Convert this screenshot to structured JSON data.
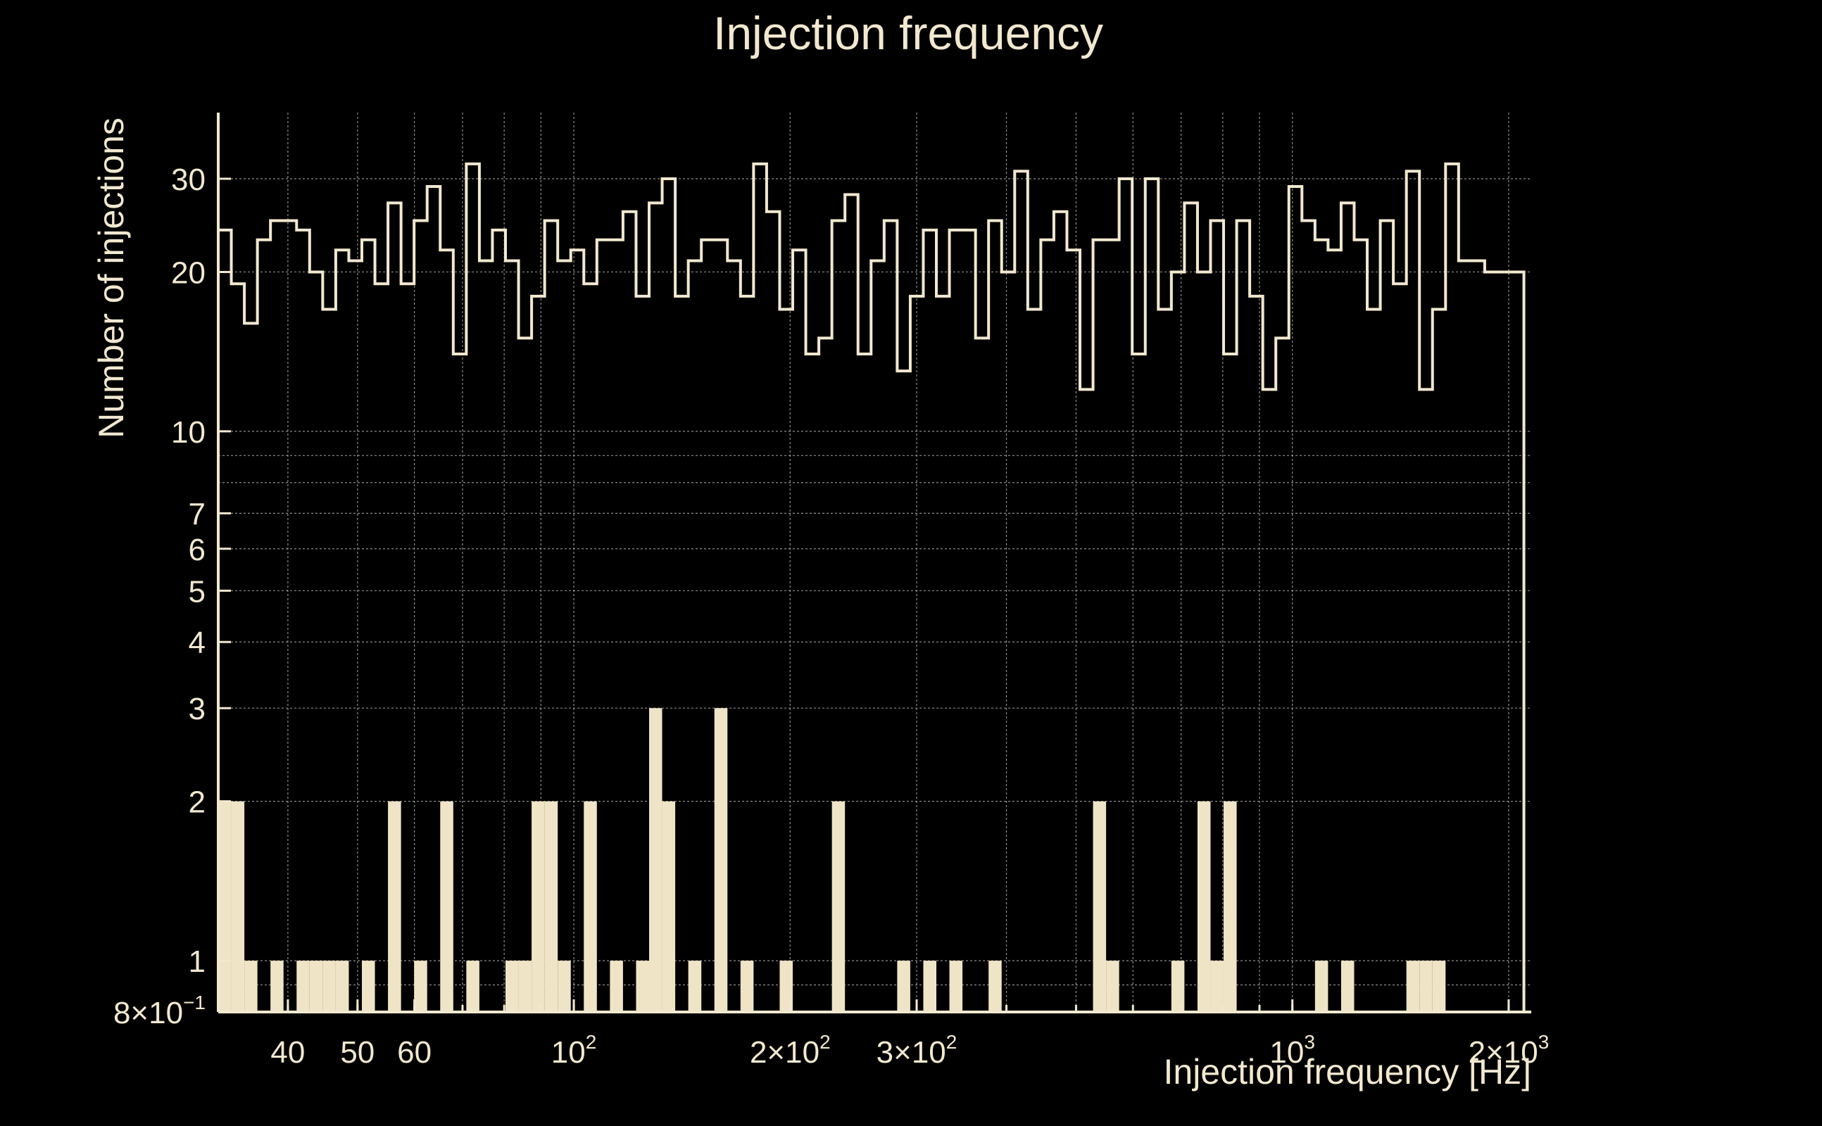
{
  "chart_data": {
    "type": "bar",
    "title": "Injection frequency",
    "xlabel": "Injection frequency [Hz]",
    "ylabel": "Number of injections",
    "x_scale": "log",
    "y_scale": "log",
    "xlim": [
      32,
      2150
    ],
    "ylim": [
      0.8,
      40
    ],
    "grid": true,
    "x_ticks": [
      {
        "value": 40,
        "label": "40"
      },
      {
        "value": 50,
        "label": "50"
      },
      {
        "value": 60,
        "label": "60"
      },
      {
        "value": 100,
        "base": "10",
        "exp": "2"
      },
      {
        "value": 200,
        "base": "2×10",
        "exp": "2"
      },
      {
        "value": 300,
        "base": "3×10",
        "exp": "2"
      },
      {
        "value": 1000,
        "base": "10",
        "exp": "3"
      },
      {
        "value": 2000,
        "base": "2×10",
        "exp": "3"
      }
    ],
    "y_ticks": [
      {
        "value": 0.8,
        "base": "8×10",
        "exp": "−1"
      },
      {
        "value": 1,
        "label": "1"
      },
      {
        "value": 2,
        "label": "2"
      },
      {
        "value": 3,
        "label": "3"
      },
      {
        "value": 4,
        "label": "4"
      },
      {
        "value": 5,
        "label": "5"
      },
      {
        "value": 6,
        "label": "6"
      },
      {
        "value": 7,
        "label": "7"
      },
      {
        "value": 10,
        "label": "10"
      },
      {
        "value": 20,
        "label": "20"
      },
      {
        "value": 30,
        "label": "30"
      }
    ],
    "bin_edges_range_hz": [
      32,
      2100
    ],
    "bin_count": 100,
    "series": [
      {
        "style": "outline",
        "values": [
          24,
          19,
          16,
          23,
          25,
          25,
          24,
          20,
          17,
          22,
          21,
          23,
          19,
          27,
          19,
          25,
          29,
          22,
          14,
          32,
          21,
          24,
          21,
          15,
          18,
          25,
          21,
          22,
          19,
          23,
          23,
          26,
          18,
          27,
          30,
          18,
          21,
          23,
          23,
          21,
          18,
          32,
          26,
          17,
          22,
          14,
          15,
          25,
          28,
          14,
          21,
          25,
          13,
          18,
          24,
          18,
          24,
          24,
          15,
          25,
          20,
          31,
          17,
          23,
          26,
          22,
          12,
          23,
          23,
          30,
          14,
          30,
          17,
          20,
          27,
          20,
          25,
          14,
          25,
          18,
          12,
          15,
          29,
          25,
          23,
          22,
          27,
          23,
          17,
          25,
          19,
          31,
          12,
          17,
          32,
          21,
          21,
          20,
          20,
          20
        ]
      },
      {
        "style": "filled",
        "values": [
          2,
          2,
          1,
          0,
          1,
          0,
          1,
          1,
          1,
          1,
          0,
          1,
          0,
          2,
          0,
          1,
          0,
          2,
          0,
          1,
          0,
          0,
          1,
          1,
          2,
          2,
          1,
          0,
          2,
          0,
          1,
          0,
          1,
          3,
          2,
          0,
          1,
          0,
          3,
          0,
          1,
          0,
          0,
          1,
          0,
          0,
          0,
          2,
          0,
          0,
          0,
          0,
          1,
          0,
          1,
          0,
          1,
          0,
          0,
          1,
          0,
          0,
          0,
          0,
          0,
          0,
          0,
          2,
          1,
          0,
          0,
          0,
          0,
          1,
          0,
          2,
          1,
          2,
          0,
          0,
          0,
          0,
          0,
          0,
          1,
          0,
          1,
          0,
          0,
          0,
          0,
          1,
          1,
          1,
          0,
          0,
          0,
          0,
          0,
          0
        ]
      }
    ]
  }
}
